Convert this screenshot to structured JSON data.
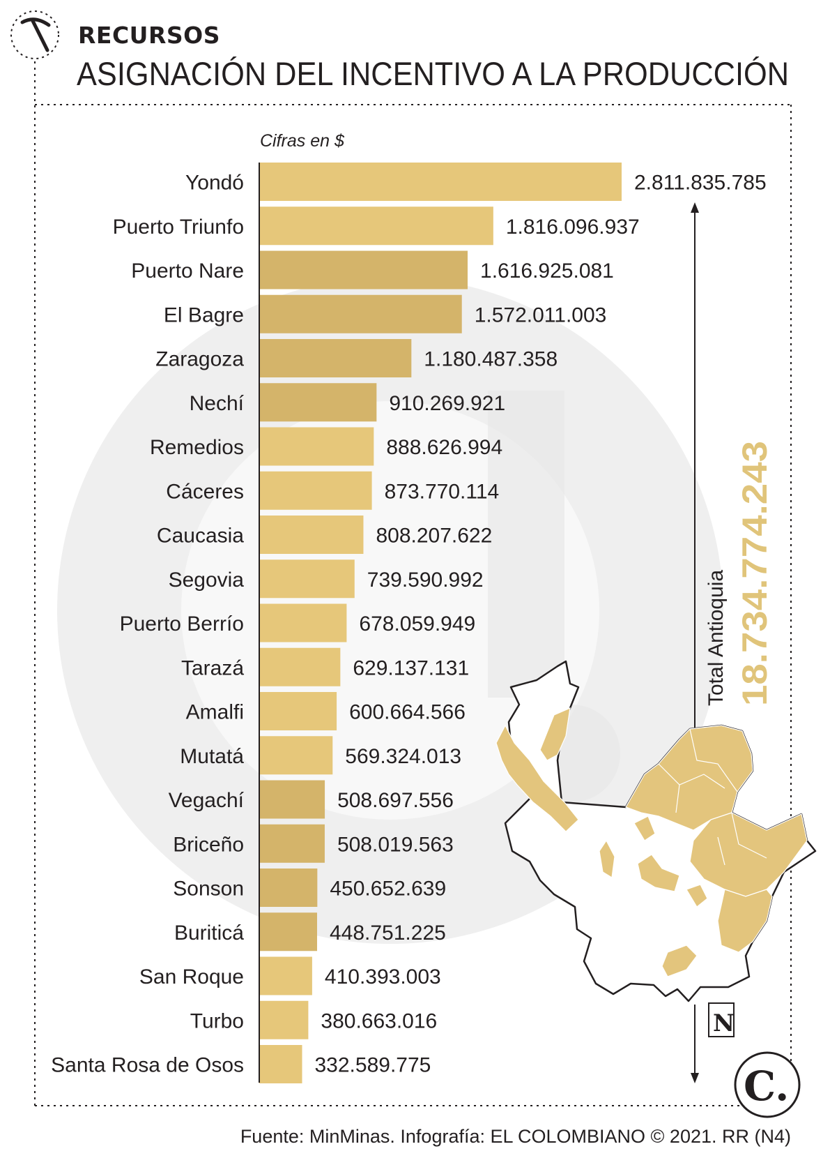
{
  "header": {
    "section": "RECURSOS",
    "title": "ASIGNACIÓN DEL INCENTIVO A LA PRODUCCIÓN",
    "icon": "pickaxe-icon"
  },
  "colors": {
    "bar": "#e6c77a",
    "bar_alt": "#d4b46a",
    "text": "#231f20",
    "total": "#e0c47a",
    "watermark": "#efefef",
    "map_fill": "#e3c57d"
  },
  "chart_data": {
    "type": "bar",
    "orientation": "horizontal",
    "unit_note": "Cifras en $",
    "categories": [
      "Yondó",
      "Puerto Triunfo",
      "Puerto Nare",
      "El Bagre",
      "Zaragoza",
      "Nechí",
      "Remedios",
      "Cáceres",
      "Caucasia",
      "Segovia",
      "Puerto Berrío",
      "Tarazá",
      "Amalfi",
      "Mutatá",
      "Vegachí",
      "Briceño",
      "Sonson",
      "Buriticá",
      "San Roque",
      "Turbo",
      "Santa Rosa de Osos"
    ],
    "values": [
      2811835785,
      1816096937,
      1616925081,
      1572011003,
      1180487358,
      910269921,
      888626994,
      873770114,
      808207622,
      739590992,
      678059949,
      629137131,
      600664566,
      569324013,
      508697556,
      508019563,
      450652639,
      448751225,
      410393003,
      380663016,
      332589775
    ],
    "value_labels": [
      "2.811.835.785",
      "1.816.096.937",
      "1.616.925.081",
      "1.572.011.003",
      "1.180.487.358",
      "910.269.921",
      "888.626.994",
      "873.770.114",
      "808.207.622",
      "739.590.992",
      "678.059.949",
      "629.137.131",
      "600.664.566",
      "569.324.013",
      "508.697.556",
      "508.019.563",
      "450.652.639",
      "448.751.225",
      "410.393.003",
      "380.663.016",
      "332.589.775"
    ],
    "xlim": [
      0,
      2811835785
    ],
    "legend": "none",
    "grid": false,
    "total_label": "Total Antioquia",
    "total_value": "18.734.774.243"
  },
  "map": {
    "description_icon": "antioquia-map-icon",
    "north_label": "N"
  },
  "footer": {
    "source": "Fuente: MinMinas. Infografía: EL COLOMBIANO © 2021. RR (N4)",
    "logo_text": "C."
  }
}
